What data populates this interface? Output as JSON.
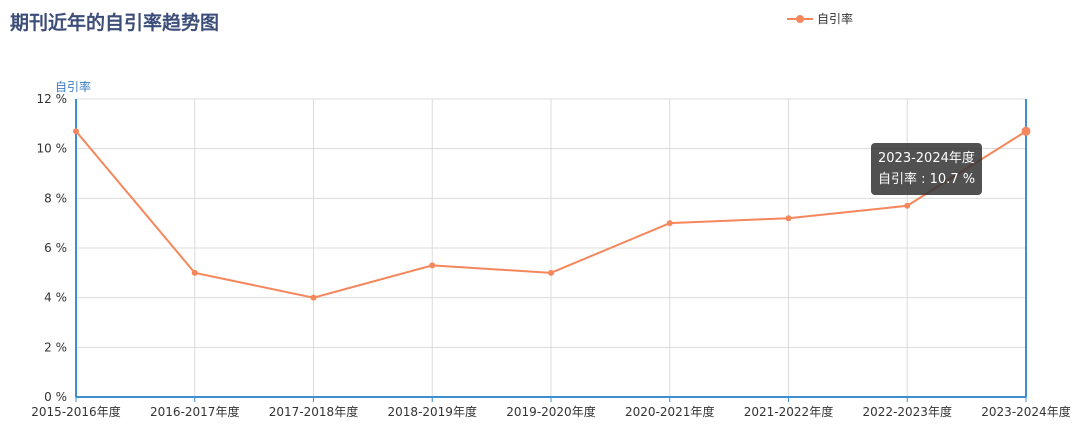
{
  "page": {
    "title": "期刊近年的自引率趋势图"
  },
  "legend": {
    "label": "自引率"
  },
  "tooltip": {
    "title": "2023-2024年度",
    "line": "自引率 : 10.7 %"
  },
  "chart_data": {
    "type": "line",
    "title": "期刊近年的自引率趋势图",
    "ylabel": "自引率",
    "xlabel": "",
    "categories": [
      "2015-2016年度",
      "2016-2017年度",
      "2017-2018年度",
      "2018-2019年度",
      "2019-2020年度",
      "2020-2021年度",
      "2021-2022年度",
      "2022-2023年度",
      "2023-2024年度"
    ],
    "series": [
      {
        "name": "自引率",
        "values": [
          10.7,
          5.0,
          4.0,
          5.3,
          5.0,
          7.0,
          7.2,
          7.7,
          10.7
        ],
        "color": "#f5875c"
      }
    ],
    "ylim": [
      0,
      12
    ],
    "yticks": [
      "0 %",
      "2 %",
      "4 %",
      "6 %",
      "8 %",
      "10 %",
      "12 %"
    ],
    "grid": true,
    "legend_position": "top-right",
    "axis_color": "#3d8fd1"
  }
}
